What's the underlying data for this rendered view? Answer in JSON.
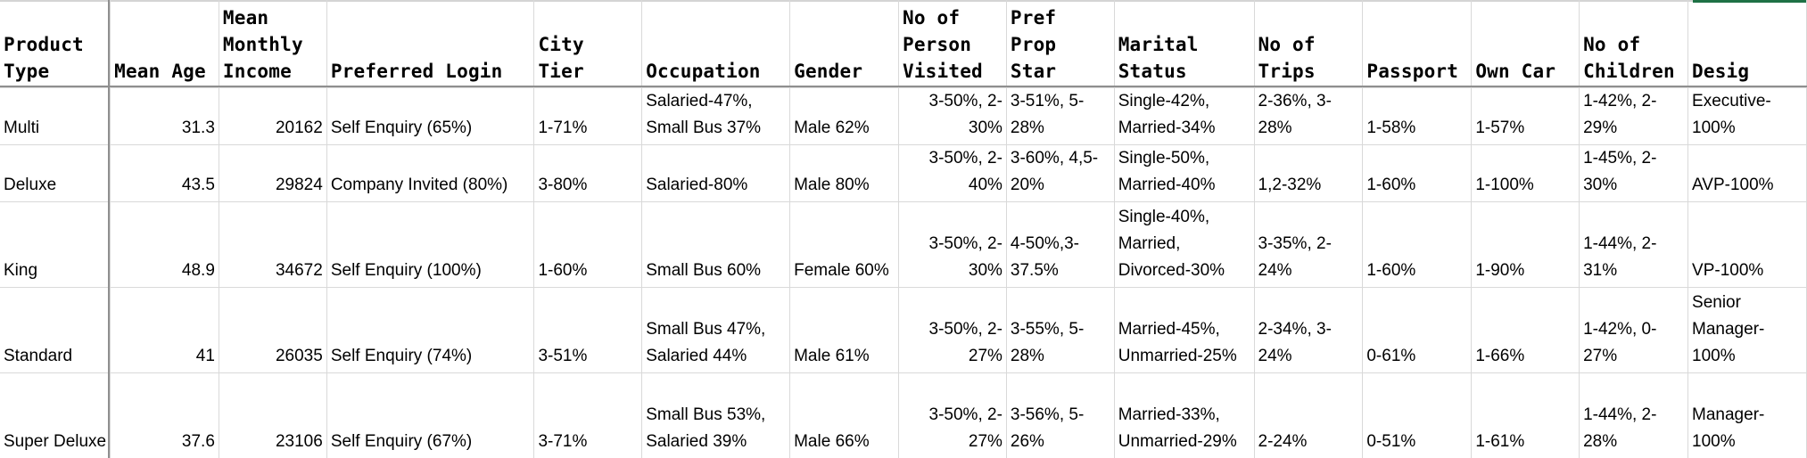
{
  "headers": {
    "product_type": "Product Type",
    "mean_age": "Mean Age",
    "mean_monthly_income": "Mean Monthly Income",
    "preferred_login": "Preferred Login",
    "city_tier": "City Tier",
    "occupation": "Occupation",
    "gender": "Gender",
    "no_of_person_visited": "No of Person Visited",
    "pref_prop_star": "Pref Prop Star",
    "marital_status": "Marital Status",
    "no_of_trips": "No of Trips",
    "passport": "Passport",
    "own_car": "Own Car",
    "no_of_children": "No of Children",
    "desig": "Desig"
  },
  "rows": [
    {
      "product_type": "Multi",
      "mean_age": "31.3",
      "mean_monthly_income": "20162",
      "preferred_login": "Self Enquiry (65%)",
      "city_tier": "1-71%",
      "occupation": "Salaried-47%, Small Bus 37%",
      "gender": "Male 62%",
      "no_of_person_visited": "3-50%, 2-30%",
      "pref_prop_star": "3-51%, 5-28%",
      "marital_status": "Single-42%, Married-34%",
      "no_of_trips": "2-36%, 3-28%",
      "passport": "1-58%",
      "own_car": "1-57%",
      "no_of_children": "1-42%, 2-29%",
      "desig": "Executive-100%"
    },
    {
      "product_type": "Deluxe",
      "mean_age": "43.5",
      "mean_monthly_income": "29824",
      "preferred_login": "Company Invited (80%)",
      "city_tier": "3-80%",
      "occupation": "Salaried-80%",
      "gender": "Male 80%",
      "no_of_person_visited": "3-50%, 2-40%",
      "pref_prop_star": "3-60%, 4,5-20%",
      "marital_status": "Single-50%, Married-40%",
      "no_of_trips": "1,2-32%",
      "passport": "1-60%",
      "own_car": "1-100%",
      "no_of_children": "1-45%, 2-30%",
      "desig": "AVP-100%"
    },
    {
      "product_type": "King",
      "mean_age": "48.9",
      "mean_monthly_income": "34672",
      "preferred_login": "Self Enquiry (100%)",
      "city_tier": "1-60%",
      "occupation": "Small Bus 60%",
      "gender": "Female 60%",
      "no_of_person_visited": "3-50%, 2-30%",
      "pref_prop_star": "4-50%,3-37.5%",
      "marital_status": "Single-40%, Married, Divorced-30%",
      "no_of_trips": "3-35%, 2-24%",
      "passport": "1-60%",
      "own_car": "1-90%",
      "no_of_children": "1-44%, 2-31%",
      "desig": "VP-100%"
    },
    {
      "product_type": "Standard",
      "mean_age": "41",
      "mean_monthly_income": "26035",
      "preferred_login": "Self Enquiry (74%)",
      "city_tier": "3-51%",
      "occupation": "Small Bus 47%, Salaried 44%",
      "gender": "Male 61%",
      "no_of_person_visited": "3-50%, 2-27%",
      "pref_prop_star": "3-55%, 5-28%",
      "marital_status": "Married-45%, Unmarried-25%",
      "no_of_trips": "2-34%, 3-24%",
      "passport": "0-61%",
      "own_car": "1-66%",
      "no_of_children": "1-42%, 0-27%",
      "desig": "Senior Manager-100%"
    },
    {
      "product_type": "Super Deluxe",
      "mean_age": "37.6",
      "mean_monthly_income": "23106",
      "preferred_login": "Self Enquiry (67%)",
      "city_tier": "3-71%",
      "occupation": "Small Bus 53%, Salaried 39%",
      "gender": "Male 66%",
      "no_of_person_visited": "3-50%, 2-27%",
      "pref_prop_star": "3-56%, 5-26%",
      "marital_status": "Married-33%, Unmarried-29%",
      "no_of_trips": "2-24%",
      "passport": "0-51%",
      "own_car": "1-61%",
      "no_of_children": "1-44%, 2-28%",
      "desig": "Manager-100%"
    }
  ]
}
